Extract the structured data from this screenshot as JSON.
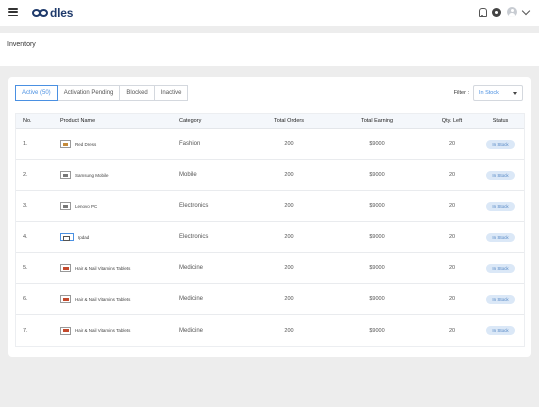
{
  "header": {
    "logo_text": "dles",
    "icons": [
      "menu-icon",
      "bell-icon",
      "gear-icon",
      "avatar-icon",
      "chevron-down-icon"
    ]
  },
  "page": {
    "title": "Inventory"
  },
  "tabs": [
    {
      "label": "Active (50)",
      "active": true
    },
    {
      "label": "Activation Pending",
      "active": false
    },
    {
      "label": "Blocked",
      "active": false
    },
    {
      "label": "Inactive",
      "active": false
    }
  ],
  "filter": {
    "label": "Filter :",
    "value": "In Stock"
  },
  "table": {
    "columns": [
      "No.",
      "Product Name",
      "Category",
      "Total Orders",
      "Total Earning",
      "Qty. Left",
      "Status"
    ],
    "rows": [
      {
        "no": "1.",
        "name": "Red Dress",
        "category": "Fashion",
        "orders": "200",
        "earning": "$9000",
        "qty": "20",
        "status": "In Stock",
        "thumb": "dress"
      },
      {
        "no": "2.",
        "name": "Samsung Mobile",
        "category": "Mobile",
        "orders": "200",
        "earning": "$9000",
        "qty": "20",
        "status": "In Stock",
        "thumb": "device"
      },
      {
        "no": "3.",
        "name": "Lenovo PC",
        "category": "Electronics",
        "orders": "200",
        "earning": "$9000",
        "qty": "20",
        "status": "In Stock",
        "thumb": "device"
      },
      {
        "no": "4.",
        "name": "Ipdad",
        "category": "Electronics",
        "orders": "200",
        "earning": "$9000",
        "qty": "20",
        "status": "In Stock",
        "thumb": "tab"
      },
      {
        "no": "5.",
        "name": "Hair & Nail Vitamins Tablets",
        "category": "Medicine",
        "orders": "200",
        "earning": "$9000",
        "qty": "20",
        "status": "In Stock",
        "thumb": "pill"
      },
      {
        "no": "6.",
        "name": "Hair & Nail Vitamins Tablets",
        "category": "Medicine",
        "orders": "200",
        "earning": "$9000",
        "qty": "20",
        "status": "In Stock",
        "thumb": "pill"
      },
      {
        "no": "7.",
        "name": "Hair & Nail Vitamins Tablets",
        "category": "Medicine",
        "orders": "200",
        "earning": "$9000",
        "qty": "20",
        "status": "In Stock",
        "thumb": "pill"
      }
    ]
  },
  "colors": {
    "accent": "#4a90e2",
    "brand": "#1f3a6b",
    "badge_bg": "#dbe8f7"
  }
}
